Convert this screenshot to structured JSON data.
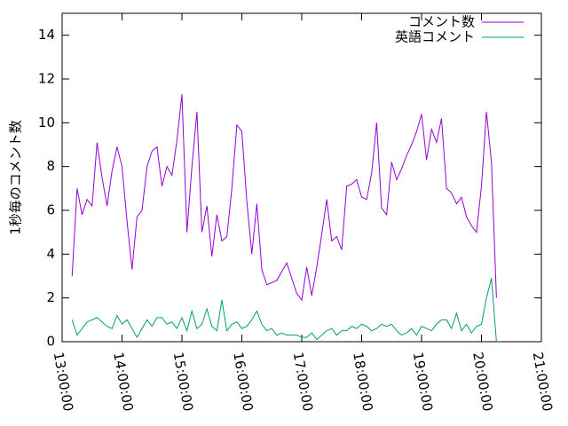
{
  "chart_data": {
    "type": "line",
    "ylabel": "1秒毎のコメント数",
    "x": [
      "13:10:00",
      "13:15:00",
      "13:20:00",
      "13:25:00",
      "13:30:00",
      "13:35:00",
      "13:40:00",
      "13:45:00",
      "13:50:00",
      "13:55:00",
      "14:00:00",
      "14:05:00",
      "14:10:00",
      "14:15:00",
      "14:20:00",
      "14:25:00",
      "14:30:00",
      "14:35:00",
      "14:40:00",
      "14:45:00",
      "14:50:00",
      "14:55:00",
      "15:00:00",
      "15:05:00",
      "15:10:00",
      "15:15:00",
      "15:20:00",
      "15:25:00",
      "15:30:00",
      "15:35:00",
      "15:40:00",
      "15:45:00",
      "15:50:00",
      "15:55:00",
      "16:00:00",
      "16:05:00",
      "16:10:00",
      "16:15:00",
      "16:20:00",
      "16:25:00",
      "16:30:00",
      "16:35:00",
      "16:40:00",
      "16:45:00",
      "16:50:00",
      "16:55:00",
      "17:00:00",
      "17:05:00",
      "17:10:00",
      "17:15:00",
      "17:20:00",
      "17:25:00",
      "17:30:00",
      "17:35:00",
      "17:40:00",
      "17:45:00",
      "17:50:00",
      "17:55:00",
      "18:00:00",
      "18:05:00",
      "18:10:00",
      "18:15:00",
      "18:20:00",
      "18:25:00",
      "18:30:00",
      "18:35:00",
      "18:40:00",
      "18:45:00",
      "18:50:00",
      "18:55:00",
      "19:00:00",
      "19:05:00",
      "19:10:00",
      "19:15:00",
      "19:20:00",
      "19:25:00",
      "19:30:00",
      "19:35:00",
      "19:40:00",
      "19:45:00",
      "19:50:00",
      "19:55:00",
      "20:00:00",
      "20:05:00",
      "20:10:00",
      "20:15:00"
    ],
    "series": [
      {
        "name": "コメント数",
        "color": "#9400d3",
        "values": [
          3.0,
          7.0,
          5.8,
          6.5,
          6.2,
          9.1,
          7.5,
          6.2,
          7.8,
          8.9,
          8.0,
          5.5,
          3.3,
          5.7,
          6.0,
          8.0,
          8.7,
          8.9,
          7.1,
          8.0,
          7.6,
          9.2,
          11.3,
          5.0,
          8.0,
          10.5,
          5.0,
          6.2,
          3.9,
          5.8,
          4.6,
          4.8,
          7.0,
          9.9,
          9.6,
          6.4,
          4.0,
          6.3,
          3.3,
          2.6,
          2.7,
          2.8,
          3.2,
          3.6,
          2.9,
          2.2,
          1.9,
          3.4,
          2.1,
          3.4,
          4.9,
          6.5,
          4.6,
          4.8,
          4.2,
          7.1,
          7.2,
          7.4,
          6.6,
          6.5,
          7.7,
          10.0,
          6.1,
          5.8,
          8.2,
          7.4,
          7.9,
          8.5,
          9.0,
          9.6,
          10.4,
          8.3,
          9.7,
          9.1,
          10.2,
          7.0,
          6.8,
          6.3,
          6.6,
          5.7,
          5.3,
          5.0,
          7.1,
          10.5,
          8.2,
          2.0
        ]
      },
      {
        "name": "英語コメント",
        "color": "#009e73",
        "values": [
          1.0,
          0.3,
          0.6,
          0.9,
          1.0,
          1.1,
          0.9,
          0.7,
          0.6,
          1.2,
          0.8,
          1.0,
          0.6,
          0.2,
          0.6,
          1.0,
          0.7,
          1.1,
          1.1,
          0.8,
          0.9,
          0.6,
          1.1,
          0.5,
          1.4,
          0.6,
          0.8,
          1.5,
          0.7,
          0.5,
          1.9,
          0.5,
          0.8,
          0.9,
          0.6,
          0.7,
          1.0,
          1.4,
          0.8,
          0.5,
          0.6,
          0.3,
          0.4,
          0.3,
          0.3,
          0.3,
          0.2,
          0.2,
          0.4,
          0.1,
          0.3,
          0.5,
          0.6,
          0.3,
          0.5,
          0.5,
          0.7,
          0.6,
          0.8,
          0.7,
          0.5,
          0.6,
          0.8,
          0.7,
          0.8,
          0.5,
          0.3,
          0.4,
          0.6,
          0.3,
          0.7,
          0.6,
          0.5,
          0.8,
          1.0,
          1.0,
          0.6,
          1.3,
          0.5,
          0.8,
          0.4,
          0.7,
          0.8,
          2.0,
          2.9,
          0.0
        ]
      }
    ],
    "xlim": [
      "13:00:00",
      "21:00:00"
    ],
    "xticks": [
      "13:00:00",
      "14:00:00",
      "15:00:00",
      "16:00:00",
      "17:00:00",
      "18:00:00",
      "19:00:00",
      "20:00:00",
      "21:00:00"
    ],
    "ylim": [
      0,
      15
    ],
    "yticks": [
      0,
      2,
      4,
      6,
      8,
      10,
      12,
      14
    ],
    "grid": false,
    "legend": "top-right"
  }
}
